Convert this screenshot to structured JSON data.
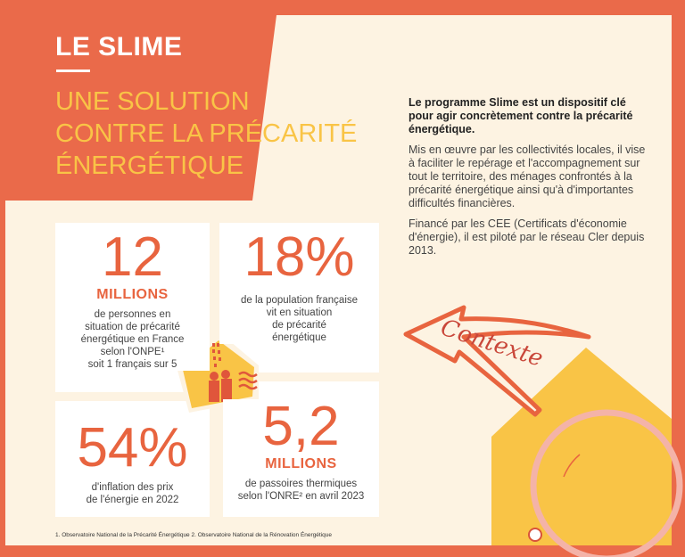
{
  "header": {
    "title": "LE SLIME",
    "subtitle_lines": [
      "UNE SOLUTION",
      "CONTRE LA PRÉCARITÉ",
      "ÉNERGÉTIQUE"
    ]
  },
  "intro": {
    "lead": "Le programme Slime est un dispositif clé pour agir concrètement contre la précarité énergétique.",
    "p1": "Mis en œuvre par les collectivités locales, il vise à faciliter le repérage et l'accompagnement sur tout le territoire, des ménages confrontés à la précarité énergétique ainsi qu'à d'importantes difficultés financières.",
    "p2": "Financé par les CEE (Certificats d'économie d'énergie), il est piloté par le réseau Cler depuis 2013."
  },
  "stats": [
    {
      "value": "12",
      "unit": "MILLIONS",
      "lines": [
        "de personnes en",
        "situation de précarité",
        "énergétique en France",
        "selon l'ONPE¹",
        "soit 1 français sur 5"
      ]
    },
    {
      "value": "18%",
      "unit": "",
      "lines": [
        "de la population française",
        "vit en situation",
        "de précarité",
        "énergétique"
      ]
    },
    {
      "value": "54%",
      "unit": "",
      "lines": [
        "d'inflation des prix",
        "de l'énergie en 2022"
      ]
    },
    {
      "value": "5,2",
      "unit": "MILLIONS",
      "lines": [
        "de passoires thermiques",
        "selon l'ONRE² en avril 2023"
      ]
    }
  ],
  "decoration": {
    "arrow_label": "Contexte",
    "house_icon": "house-with-family-icon"
  },
  "footnotes": "1. Observatoire National de la Précarité Énergétique   2. Observatoire National de la Rénovation Énergétique",
  "colors": {
    "orange": "#EA6A4A",
    "cream": "#FDF3E2",
    "yellow": "#F9C446",
    "accent": "#E8643F"
  }
}
